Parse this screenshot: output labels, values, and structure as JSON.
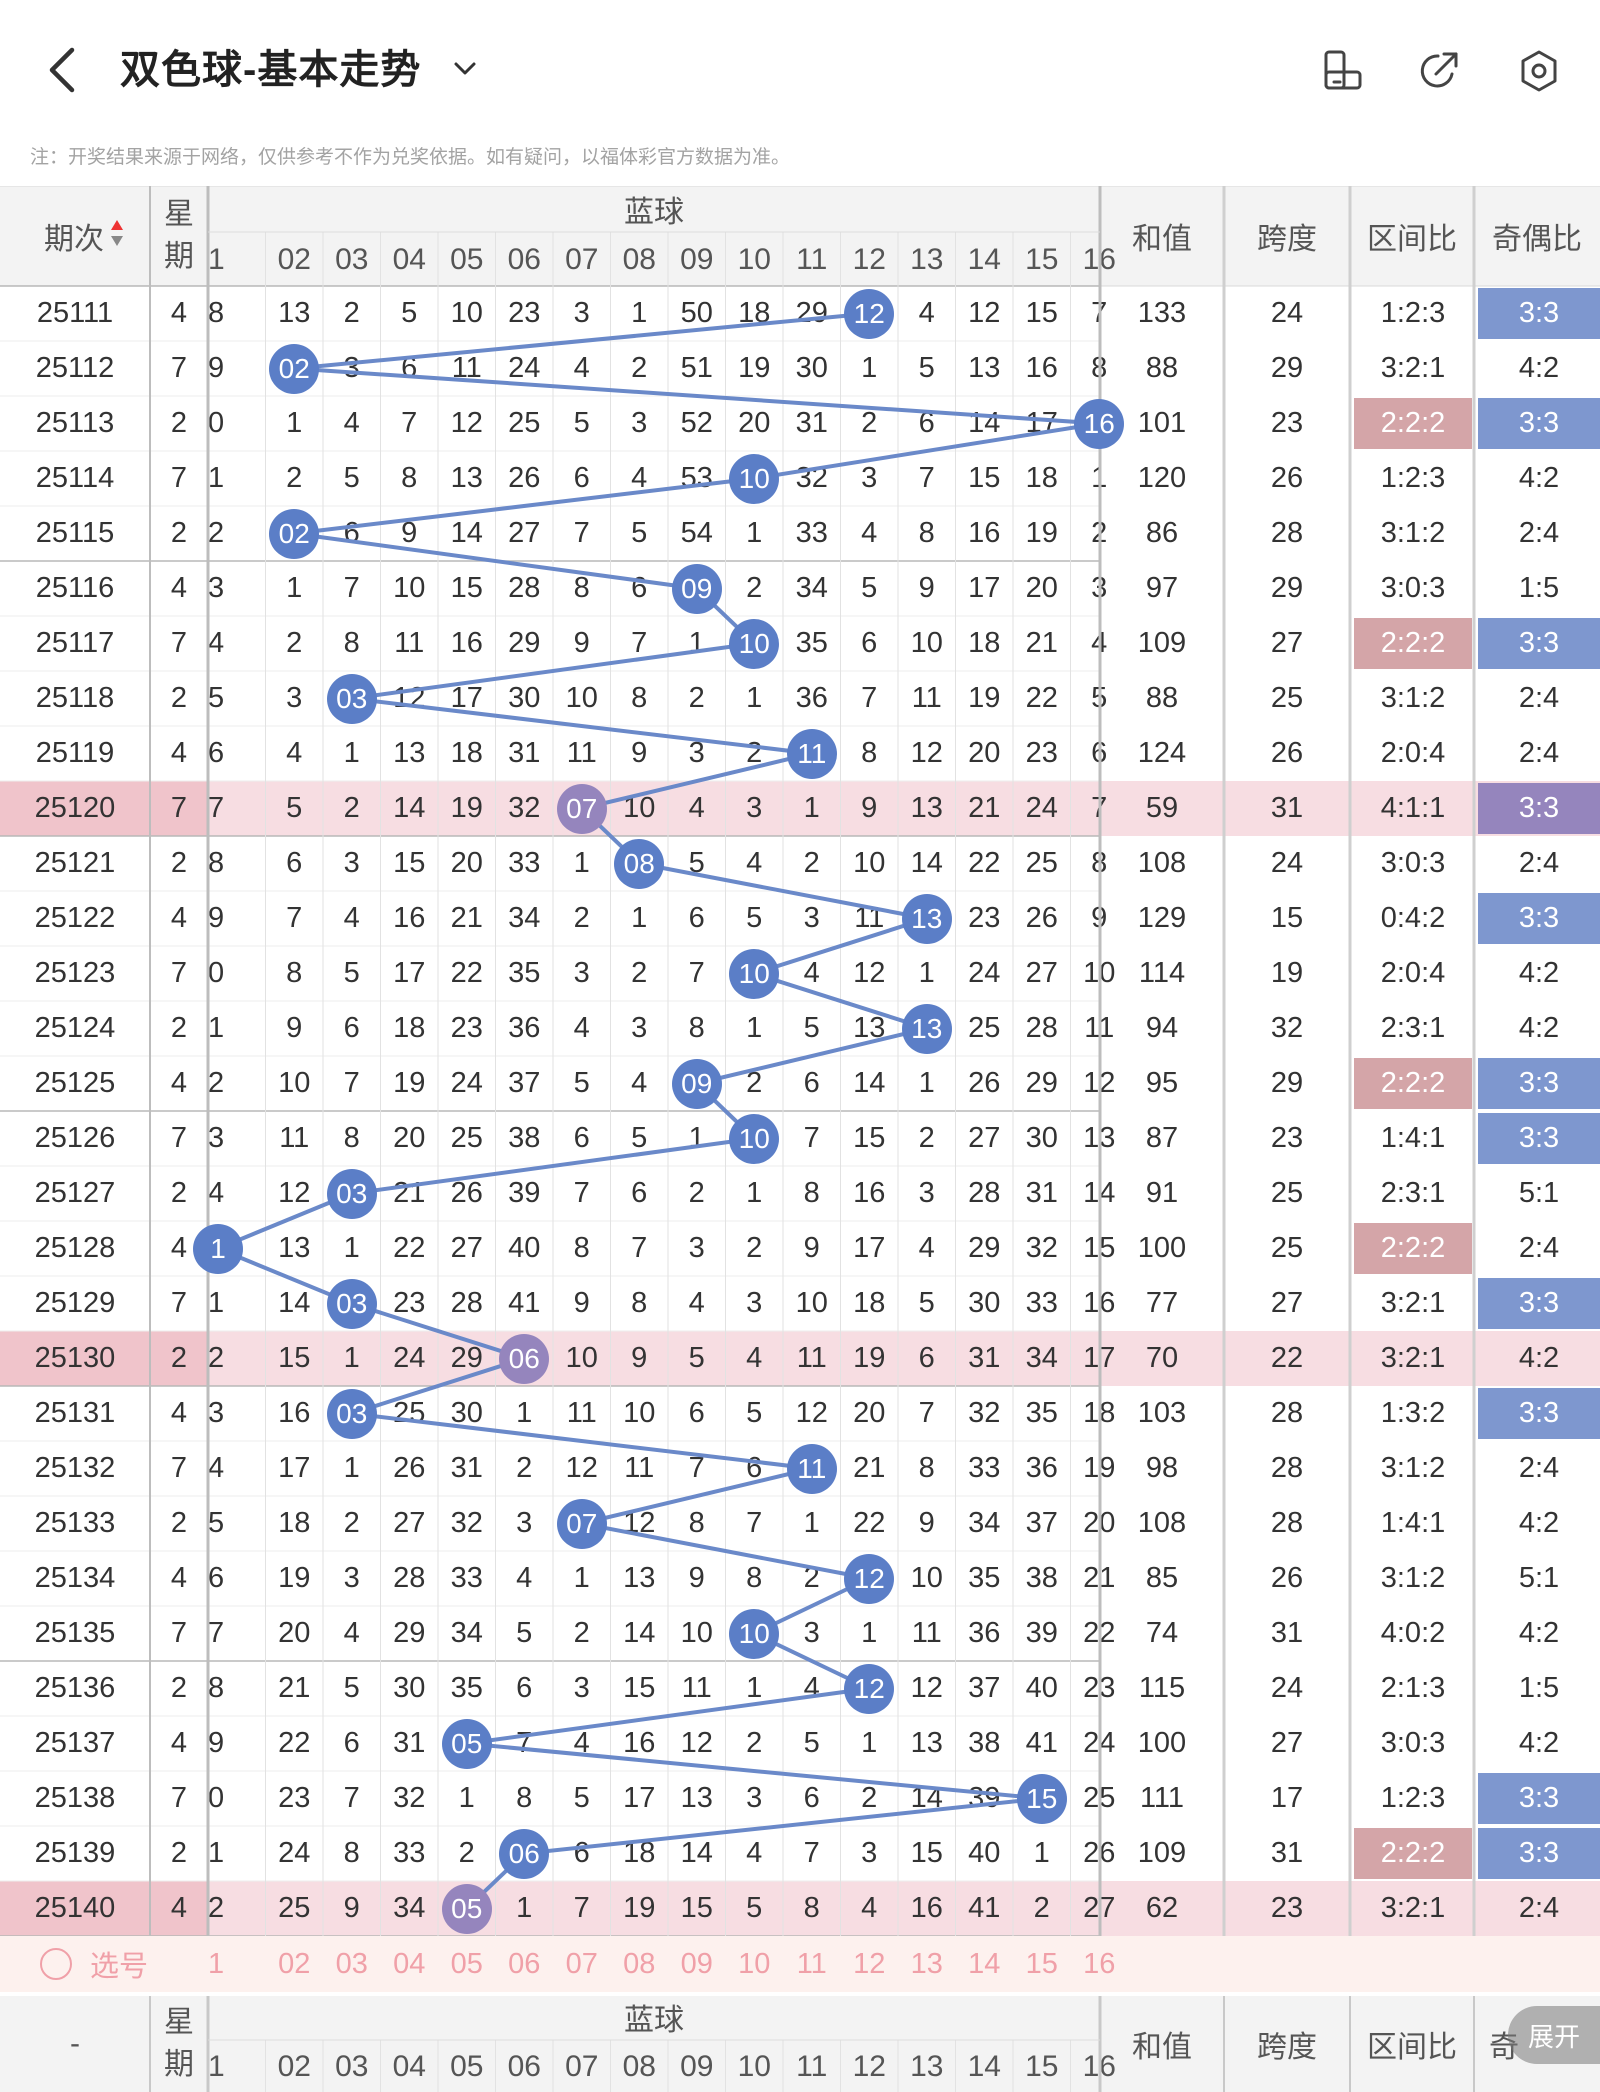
{
  "header": {
    "title": "双色球-基本走势"
  },
  "note": "注：开奖结果来源于网络，仅供参考不作为兑奖依据。如有疑问，以福体彩官方数据为准。",
  "columns": {
    "period": "期次",
    "weekday": "星期",
    "blue": "蓝球",
    "blue_numbers": [
      "1",
      "02",
      "03",
      "04",
      "05",
      "06",
      "07",
      "08",
      "09",
      "10",
      "11",
      "12",
      "13",
      "14",
      "15",
      "16"
    ],
    "sum": "和值",
    "span": "跨度",
    "zone_ratio": "区间比",
    "odd_even": "奇偶比"
  },
  "rows": [
    {
      "period": "25111",
      "week": "4",
      "cells": [
        "8",
        "13",
        "2",
        "5",
        "10",
        "23",
        "3",
        "1",
        "50",
        "18",
        "29",
        "12",
        "4",
        "12",
        "15",
        "7"
      ],
      "blue": 12,
      "sum": "133",
      "span": "24",
      "zone": "1:2:3",
      "oe": "3:3",
      "hl": false,
      "zone_hl": false,
      "oe_hl": true
    },
    {
      "period": "25112",
      "week": "7",
      "cells": [
        "9",
        "02",
        "3",
        "6",
        "11",
        "24",
        "4",
        "2",
        "51",
        "19",
        "30",
        "1",
        "5",
        "13",
        "16",
        "8"
      ],
      "blue": 2,
      "sum": "88",
      "span": "29",
      "zone": "3:2:1",
      "oe": "4:2",
      "hl": false,
      "zone_hl": false,
      "oe_hl": false
    },
    {
      "period": "25113",
      "week": "2",
      "cells": [
        "0",
        "1",
        "4",
        "7",
        "12",
        "25",
        "5",
        "3",
        "52",
        "20",
        "31",
        "2",
        "6",
        "14",
        "17",
        "16"
      ],
      "blue": 16,
      "sum": "101",
      "span": "23",
      "zone": "2:2:2",
      "oe": "3:3",
      "hl": false,
      "zone_hl": true,
      "oe_hl": true
    },
    {
      "period": "25114",
      "week": "7",
      "cells": [
        "1",
        "2",
        "5",
        "8",
        "13",
        "26",
        "6",
        "4",
        "53",
        "10",
        "32",
        "3",
        "7",
        "15",
        "18",
        "1"
      ],
      "blue": 10,
      "sum": "120",
      "span": "26",
      "zone": "1:2:3",
      "oe": "4:2",
      "hl": false,
      "zone_hl": false,
      "oe_hl": false
    },
    {
      "period": "25115",
      "week": "2",
      "cells": [
        "2",
        "02",
        "6",
        "9",
        "14",
        "27",
        "7",
        "5",
        "54",
        "1",
        "33",
        "4",
        "8",
        "16",
        "19",
        "2"
      ],
      "blue": 2,
      "sum": "86",
      "span": "28",
      "zone": "3:1:2",
      "oe": "2:4",
      "hl": false,
      "zone_hl": false,
      "oe_hl": false
    },
    {
      "period": "25116",
      "week": "4",
      "cells": [
        "3",
        "1",
        "7",
        "10",
        "15",
        "28",
        "8",
        "6",
        "09",
        "2",
        "34",
        "5",
        "9",
        "17",
        "20",
        "3"
      ],
      "blue": 9,
      "sum": "97",
      "span": "29",
      "zone": "3:0:3",
      "oe": "1:5",
      "hl": false,
      "zone_hl": false,
      "oe_hl": false
    },
    {
      "period": "25117",
      "week": "7",
      "cells": [
        "4",
        "2",
        "8",
        "11",
        "16",
        "29",
        "9",
        "7",
        "1",
        "10",
        "35",
        "6",
        "10",
        "18",
        "21",
        "4"
      ],
      "blue": 10,
      "sum": "109",
      "span": "27",
      "zone": "2:2:2",
      "oe": "3:3",
      "hl": false,
      "zone_hl": true,
      "oe_hl": true
    },
    {
      "period": "25118",
      "week": "2",
      "cells": [
        "5",
        "3",
        "03",
        "12",
        "17",
        "30",
        "10",
        "8",
        "2",
        "1",
        "36",
        "7",
        "11",
        "19",
        "22",
        "5"
      ],
      "blue": 3,
      "sum": "88",
      "span": "25",
      "zone": "3:1:2",
      "oe": "2:4",
      "hl": false,
      "zone_hl": false,
      "oe_hl": false
    },
    {
      "period": "25119",
      "week": "4",
      "cells": [
        "6",
        "4",
        "1",
        "13",
        "18",
        "31",
        "11",
        "9",
        "3",
        "2",
        "11",
        "8",
        "12",
        "20",
        "23",
        "6"
      ],
      "blue": 11,
      "sum": "124",
      "span": "26",
      "zone": "2:0:4",
      "oe": "2:4",
      "hl": false,
      "zone_hl": false,
      "oe_hl": false
    },
    {
      "period": "25120",
      "week": "7",
      "cells": [
        "7",
        "5",
        "2",
        "14",
        "19",
        "32",
        "07",
        "10",
        "4",
        "3",
        "1",
        "9",
        "13",
        "21",
        "24",
        "7"
      ],
      "blue": 7,
      "sum": "59",
      "span": "31",
      "zone": "4:1:1",
      "oe": "3:3",
      "hl": true,
      "zone_hl": false,
      "oe_hl": true
    },
    {
      "period": "25121",
      "week": "2",
      "cells": [
        "8",
        "6",
        "3",
        "15",
        "20",
        "33",
        "1",
        "08",
        "5",
        "4",
        "2",
        "10",
        "14",
        "22",
        "25",
        "8"
      ],
      "blue": 8,
      "sum": "108",
      "span": "24",
      "zone": "3:0:3",
      "oe": "2:4",
      "hl": false,
      "zone_hl": false,
      "oe_hl": false
    },
    {
      "period": "25122",
      "week": "4",
      "cells": [
        "9",
        "7",
        "4",
        "16",
        "21",
        "34",
        "2",
        "1",
        "6",
        "5",
        "3",
        "11",
        "13",
        "23",
        "26",
        "9"
      ],
      "blue": 13,
      "sum": "129",
      "span": "15",
      "zone": "0:4:2",
      "oe": "3:3",
      "hl": false,
      "zone_hl": false,
      "oe_hl": true
    },
    {
      "period": "25123",
      "week": "7",
      "cells": [
        "0",
        "8",
        "5",
        "17",
        "22",
        "35",
        "3",
        "2",
        "7",
        "10",
        "4",
        "12",
        "1",
        "24",
        "27",
        "10"
      ],
      "blue": 10,
      "sum": "114",
      "span": "19",
      "zone": "2:0:4",
      "oe": "4:2",
      "hl": false,
      "zone_hl": false,
      "oe_hl": false
    },
    {
      "period": "25124",
      "week": "2",
      "cells": [
        "1",
        "9",
        "6",
        "18",
        "23",
        "36",
        "4",
        "3",
        "8",
        "1",
        "5",
        "13",
        "13",
        "25",
        "28",
        "11"
      ],
      "blue": 13,
      "sum": "94",
      "span": "32",
      "zone": "2:3:1",
      "oe": "4:2",
      "hl": false,
      "zone_hl": false,
      "oe_hl": false
    },
    {
      "period": "25125",
      "week": "4",
      "cells": [
        "2",
        "10",
        "7",
        "19",
        "24",
        "37",
        "5",
        "4",
        "09",
        "2",
        "6",
        "14",
        "1",
        "26",
        "29",
        "12"
      ],
      "blue": 9,
      "sum": "95",
      "span": "29",
      "zone": "2:2:2",
      "oe": "3:3",
      "hl": false,
      "zone_hl": true,
      "oe_hl": true
    },
    {
      "period": "25126",
      "week": "7",
      "cells": [
        "3",
        "11",
        "8",
        "20",
        "25",
        "38",
        "6",
        "5",
        "1",
        "10",
        "7",
        "15",
        "2",
        "27",
        "30",
        "13"
      ],
      "blue": 10,
      "sum": "87",
      "span": "23",
      "zone": "1:4:1",
      "oe": "3:3",
      "hl": false,
      "zone_hl": false,
      "oe_hl": true
    },
    {
      "period": "25127",
      "week": "2",
      "cells": [
        "4",
        "12",
        "03",
        "21",
        "26",
        "39",
        "7",
        "6",
        "2",
        "1",
        "8",
        "16",
        "3",
        "28",
        "31",
        "14"
      ],
      "blue": 3,
      "sum": "91",
      "span": "25",
      "zone": "2:3:1",
      "oe": "5:1",
      "hl": false,
      "zone_hl": false,
      "oe_hl": false
    },
    {
      "period": "25128",
      "week": "4",
      "cells": [
        "1",
        "13",
        "1",
        "22",
        "27",
        "40",
        "8",
        "7",
        "3",
        "2",
        "9",
        "17",
        "4",
        "29",
        "32",
        "15"
      ],
      "blue": 1,
      "sum": "100",
      "span": "25",
      "zone": "2:2:2",
      "oe": "2:4",
      "hl": false,
      "zone_hl": true,
      "oe_hl": false
    },
    {
      "period": "25129",
      "week": "7",
      "cells": [
        "1",
        "14",
        "03",
        "23",
        "28",
        "41",
        "9",
        "8",
        "4",
        "3",
        "10",
        "18",
        "5",
        "30",
        "33",
        "16"
      ],
      "blue": 3,
      "sum": "77",
      "span": "27",
      "zone": "3:2:1",
      "oe": "3:3",
      "hl": false,
      "zone_hl": false,
      "oe_hl": true
    },
    {
      "period": "25130",
      "week": "2",
      "cells": [
        "2",
        "15",
        "1",
        "24",
        "29",
        "06",
        "10",
        "9",
        "5",
        "4",
        "11",
        "19",
        "6",
        "31",
        "34",
        "17"
      ],
      "blue": 6,
      "sum": "70",
      "span": "22",
      "zone": "3:2:1",
      "oe": "4:2",
      "hl": true,
      "zone_hl": false,
      "oe_hl": false
    },
    {
      "period": "25131",
      "week": "4",
      "cells": [
        "3",
        "16",
        "03",
        "25",
        "30",
        "1",
        "11",
        "10",
        "6",
        "5",
        "12",
        "20",
        "7",
        "32",
        "35",
        "18"
      ],
      "blue": 3,
      "sum": "103",
      "span": "28",
      "zone": "1:3:2",
      "oe": "3:3",
      "hl": false,
      "zone_hl": false,
      "oe_hl": true
    },
    {
      "period": "25132",
      "week": "7",
      "cells": [
        "4",
        "17",
        "1",
        "26",
        "31",
        "2",
        "12",
        "11",
        "7",
        "6",
        "11",
        "21",
        "8",
        "33",
        "36",
        "19"
      ],
      "blue": 11,
      "sum": "98",
      "span": "28",
      "zone": "3:1:2",
      "oe": "2:4",
      "hl": false,
      "zone_hl": false,
      "oe_hl": false
    },
    {
      "period": "25133",
      "week": "2",
      "cells": [
        "5",
        "18",
        "2",
        "27",
        "32",
        "3",
        "07",
        "12",
        "8",
        "7",
        "1",
        "22",
        "9",
        "34",
        "37",
        "20"
      ],
      "blue": 7,
      "sum": "108",
      "span": "28",
      "zone": "1:4:1",
      "oe": "4:2",
      "hl": false,
      "zone_hl": false,
      "oe_hl": false
    },
    {
      "period": "25134",
      "week": "4",
      "cells": [
        "6",
        "19",
        "3",
        "28",
        "33",
        "4",
        "1",
        "13",
        "9",
        "8",
        "2",
        "12",
        "10",
        "35",
        "38",
        "21"
      ],
      "blue": 12,
      "sum": "85",
      "span": "26",
      "zone": "3:1:2",
      "oe": "5:1",
      "hl": false,
      "zone_hl": false,
      "oe_hl": false
    },
    {
      "period": "25135",
      "week": "7",
      "cells": [
        "7",
        "20",
        "4",
        "29",
        "34",
        "5",
        "2",
        "14",
        "10",
        "10",
        "3",
        "1",
        "11",
        "36",
        "39",
        "22"
      ],
      "blue": 10,
      "sum": "74",
      "span": "31",
      "zone": "4:0:2",
      "oe": "4:2",
      "hl": false,
      "zone_hl": false,
      "oe_hl": false
    },
    {
      "period": "25136",
      "week": "2",
      "cells": [
        "8",
        "21",
        "5",
        "30",
        "35",
        "6",
        "3",
        "15",
        "11",
        "1",
        "4",
        "12",
        "12",
        "37",
        "40",
        "23"
      ],
      "blue": 12,
      "sum": "115",
      "span": "24",
      "zone": "2:1:3",
      "oe": "1:5",
      "hl": false,
      "zone_hl": false,
      "oe_hl": false
    },
    {
      "period": "25137",
      "week": "4",
      "cells": [
        "9",
        "22",
        "6",
        "31",
        "05",
        "7",
        "4",
        "16",
        "12",
        "2",
        "5",
        "1",
        "13",
        "38",
        "41",
        "24"
      ],
      "blue": 5,
      "sum": "100",
      "span": "27",
      "zone": "3:0:3",
      "oe": "4:2",
      "hl": false,
      "zone_hl": false,
      "oe_hl": false
    },
    {
      "period": "25138",
      "week": "7",
      "cells": [
        "0",
        "23",
        "7",
        "32",
        "1",
        "8",
        "5",
        "17",
        "13",
        "3",
        "6",
        "2",
        "14",
        "39",
        "15",
        "25"
      ],
      "blue": 15,
      "sum": "111",
      "span": "17",
      "zone": "1:2:3",
      "oe": "3:3",
      "hl": false,
      "zone_hl": false,
      "oe_hl": true
    },
    {
      "period": "25139",
      "week": "2",
      "cells": [
        "1",
        "24",
        "8",
        "33",
        "2",
        "06",
        "6",
        "18",
        "14",
        "4",
        "7",
        "3",
        "15",
        "40",
        "1",
        "26"
      ],
      "blue": 6,
      "sum": "109",
      "span": "31",
      "zone": "2:2:2",
      "oe": "3:3",
      "hl": false,
      "zone_hl": true,
      "oe_hl": true
    },
    {
      "period": "25140",
      "week": "4",
      "cells": [
        "2",
        "25",
        "9",
        "34",
        "05",
        "1",
        "7",
        "19",
        "15",
        "5",
        "8",
        "4",
        "16",
        "41",
        "2",
        "27"
      ],
      "blue": 5,
      "sum": "62",
      "span": "23",
      "zone": "3:2:1",
      "oe": "2:4",
      "hl": true,
      "zone_hl": false,
      "oe_hl": false
    }
  ],
  "select_row": {
    "label": "选号",
    "numbers": [
      "1",
      "02",
      "03",
      "04",
      "05",
      "06",
      "07",
      "08",
      "09",
      "10",
      "11",
      "12",
      "13",
      "14",
      "15",
      "16"
    ]
  },
  "footer_header": {
    "period": "-",
    "weekday": "星期",
    "blue": "蓝球",
    "blue_numbers": [
      "1",
      "02",
      "03",
      "04",
      "05",
      "06",
      "07",
      "08",
      "09",
      "10",
      "11",
      "12",
      "13",
      "14",
      "15",
      "16"
    ],
    "sum": "和值",
    "span": "跨度",
    "zone_ratio": "区间比",
    "odd_even": "奇"
  },
  "expand_label": "展开",
  "colors": {
    "blue_ball": "#5b7ec7",
    "purple_ball": "#9585bd",
    "row_highlight": "#f7dde2",
    "zone_highlight": "#d4a5a8",
    "oe_highlight": "#7e97cf",
    "trend_line": "#6a89c9"
  }
}
